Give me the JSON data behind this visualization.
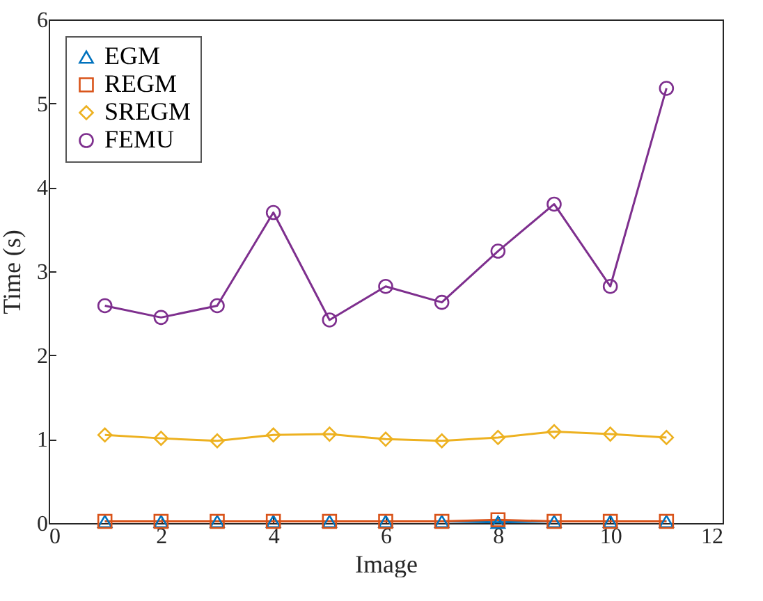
{
  "chart_data": {
    "type": "line",
    "xlabel": "Image",
    "ylabel": "Time (s)",
    "x": [
      1,
      2,
      3,
      4,
      5,
      6,
      7,
      8,
      9,
      10,
      11
    ],
    "series": [
      {
        "name": "EGM",
        "color": "#0072bd",
        "marker": "triangle",
        "values": [
          0.02,
          0.02,
          0.02,
          0.02,
          0.02,
          0.02,
          0.02,
          0.01,
          0.02,
          0.02,
          0.02
        ]
      },
      {
        "name": "REGM",
        "color": "#d95319",
        "marker": "square",
        "values": [
          0.02,
          0.02,
          0.02,
          0.02,
          0.02,
          0.02,
          0.02,
          0.04,
          0.02,
          0.02,
          0.02
        ]
      },
      {
        "name": "SREGM",
        "color": "#edb120",
        "marker": "diamond",
        "values": [
          1.05,
          1.01,
          0.98,
          1.05,
          1.06,
          1.0,
          0.98,
          1.02,
          1.09,
          1.06,
          1.02
        ]
      },
      {
        "name": "FEMU",
        "color": "#7e2f8e",
        "marker": "circle",
        "values": [
          2.59,
          2.45,
          2.59,
          3.7,
          2.42,
          2.82,
          2.63,
          3.24,
          3.8,
          2.82,
          5.18
        ]
      }
    ],
    "xlim": [
      0,
      12
    ],
    "xticks": [
      0,
      2,
      4,
      6,
      8,
      10,
      12
    ],
    "ylim": [
      0,
      6
    ],
    "yticks": [
      0,
      1,
      2,
      3,
      4,
      5,
      6
    ],
    "grid": false,
    "legend": "top left",
    "line_style": "solid"
  }
}
